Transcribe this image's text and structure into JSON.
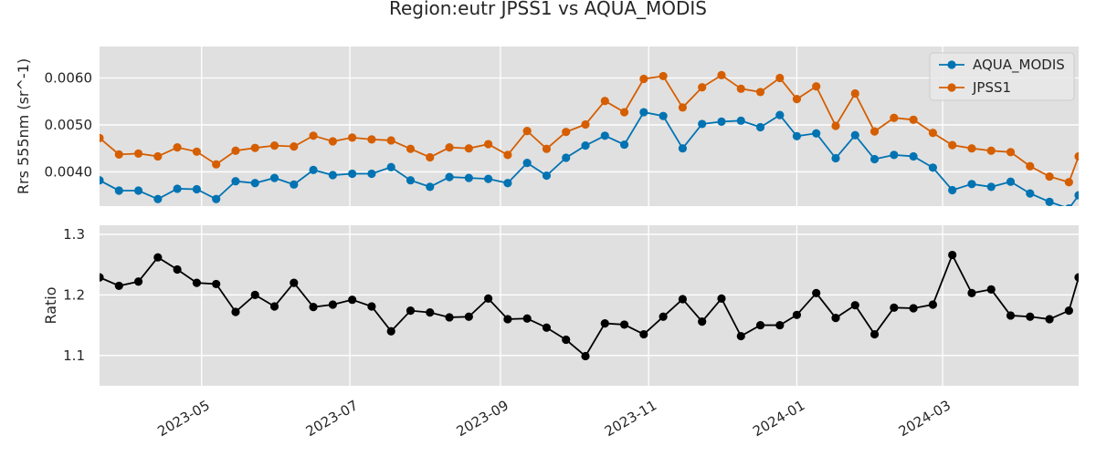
{
  "chart_data": [
    {
      "type": "line",
      "title": "Region:eutr JPSS1 vs AQUA_MODIS",
      "xlabel": "",
      "ylabel": "Rrs 555nm (sr^-1)",
      "ylim": [
        0.00327,
        0.00667
      ],
      "yticks": [
        "0.0040",
        "0.0050",
        "0.0060"
      ],
      "ytick_values": [
        0.004,
        0.005,
        0.006
      ],
      "xlim": [
        "2023-03-20",
        "2024-04-26"
      ],
      "grid": true,
      "legend_position": "top-right",
      "x": [
        "2023-03-20",
        "2023-03-28",
        "2023-04-05",
        "2023-04-13",
        "2023-04-21",
        "2023-04-29",
        "2023-05-07",
        "2023-05-15",
        "2023-05-23",
        "2023-05-31",
        "2023-06-08",
        "2023-06-16",
        "2023-06-24",
        "2023-07-02",
        "2023-07-10",
        "2023-07-18",
        "2023-07-26",
        "2023-08-03",
        "2023-08-11",
        "2023-08-19",
        "2023-08-27",
        "2023-09-04",
        "2023-09-12",
        "2023-09-20",
        "2023-09-28",
        "2023-10-06",
        "2023-10-14",
        "2023-10-22",
        "2023-10-30",
        "2023-11-07",
        "2023-11-15",
        "2023-11-23",
        "2023-12-01",
        "2023-12-09",
        "2023-12-17",
        "2023-12-25",
        "2024-01-01",
        "2024-01-09",
        "2024-01-17",
        "2024-01-25",
        "2024-02-02",
        "2024-02-10",
        "2024-02-18",
        "2024-02-26",
        "2024-03-05",
        "2024-03-13",
        "2024-03-21",
        "2024-03-29",
        "2024-04-06",
        "2024-04-14",
        "2024-04-22",
        "2024-04-26"
      ],
      "series": [
        {
          "name": "AQUA_MODIS",
          "color": "#0173b2",
          "values": [
            0.00382,
            0.0036,
            0.0036,
            0.00342,
            0.00364,
            0.00363,
            0.00342,
            0.0038,
            0.00376,
            0.00387,
            0.00373,
            0.00404,
            0.00393,
            0.00396,
            0.00396,
            0.0041,
            0.00382,
            0.00368,
            0.00389,
            0.00387,
            0.00385,
            0.00376,
            0.00419,
            0.00392,
            0.0043,
            0.00456,
            0.00477,
            0.00458,
            0.00527,
            0.00519,
            0.0045,
            0.00502,
            0.00507,
            0.00509,
            0.00495,
            0.00521,
            0.00476,
            0.00482,
            0.00429,
            0.00478,
            0.00427,
            0.00436,
            0.00433,
            0.00409,
            0.00361,
            0.00374,
            0.00368,
            0.00379,
            0.00354,
            0.00336,
            0.00322,
            0.0035
          ]
        },
        {
          "name": "JPSS1",
          "color": "#d55e00",
          "values": [
            0.00472,
            0.00437,
            0.00439,
            0.00433,
            0.00452,
            0.00443,
            0.00416,
            0.00445,
            0.00451,
            0.00456,
            0.00454,
            0.00477,
            0.00465,
            0.00473,
            0.00469,
            0.00467,
            0.00449,
            0.00431,
            0.00452,
            0.0045,
            0.00459,
            0.00436,
            0.00487,
            0.00449,
            0.00485,
            0.00501,
            0.00551,
            0.00527,
            0.00598,
            0.00604,
            0.00537,
            0.0058,
            0.00606,
            0.00577,
            0.0057,
            0.006,
            0.00555,
            0.00582,
            0.00498,
            0.00567,
            0.00486,
            0.00515,
            0.00511,
            0.00483,
            0.00457,
            0.0045,
            0.00445,
            0.00442,
            0.00412,
            0.0039,
            0.00378,
            0.00433
          ]
        }
      ]
    },
    {
      "type": "line",
      "xlabel": "",
      "ylabel": "Ratio",
      "ylim": [
        1.05,
        1.315
      ],
      "yticks": [
        "1.1",
        "1.2",
        "1.3"
      ],
      "ytick_values": [
        1.1,
        1.2,
        1.3
      ],
      "xticks": [
        "2023-05",
        "2023-07",
        "2023-09",
        "2023-11",
        "2024-01",
        "2024-03"
      ],
      "xtick_values": [
        "2023-05-01",
        "2023-07-01",
        "2023-09-01",
        "2023-11-01",
        "2024-01-01",
        "2024-03-01"
      ],
      "grid": true,
      "series": [
        {
          "color": "#000000",
          "values": [
            1.229,
            1.215,
            1.222,
            1.262,
            1.242,
            1.22,
            1.218,
            1.172,
            1.2,
            1.181,
            1.22,
            1.18,
            1.184,
            1.192,
            1.181,
            1.14,
            1.174,
            1.171,
            1.163,
            1.164,
            1.194,
            1.16,
            1.161,
            1.146,
            1.126,
            1.099,
            1.153,
            1.151,
            1.135,
            1.164,
            1.193,
            1.156,
            1.194,
            1.132,
            1.15,
            1.15,
            1.167,
            1.203,
            1.162,
            1.183,
            1.135,
            1.179,
            1.178,
            1.184,
            1.266,
            1.203,
            1.209,
            1.166,
            1.164,
            1.16,
            1.174,
            1.229
          ]
        }
      ]
    }
  ]
}
